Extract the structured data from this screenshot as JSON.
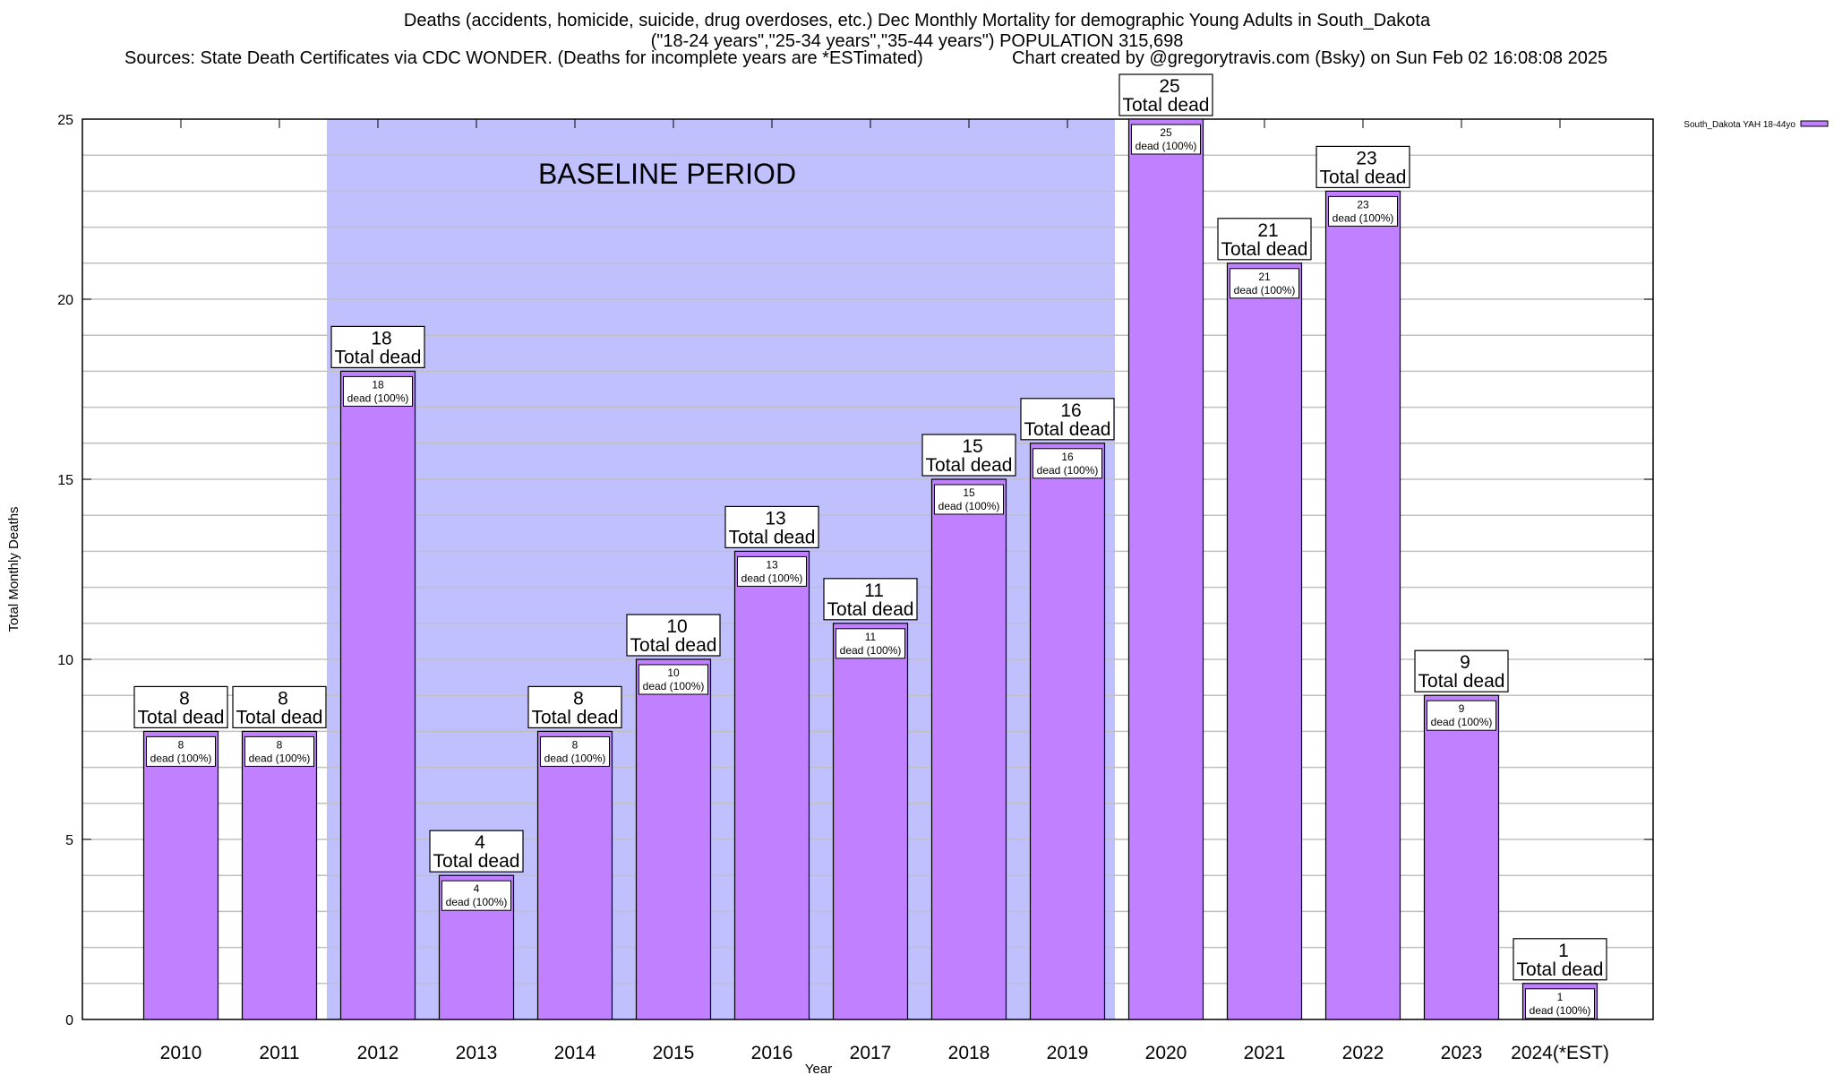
{
  "chart_data": {
    "type": "bar",
    "title_lines": [
      "Deaths (accidents, homicide, suicide, drug overdoses, etc.) Dec Monthly Mortality for demographic Young Adults in South_Dakota",
      "(\"18-24 years\",\"25-34 years\",\"35-44 years\") POPULATION 315,698"
    ],
    "sources": "Sources: State Death Certificates via CDC WONDER. (Deaths for incomplete years are *ESTimated)",
    "credit": "Chart created by @gregorytravis.com (Bsky) on Sun Feb 02 16:08:08 2025",
    "xlabel": "Year",
    "ylabel": "Total Monthly Deaths",
    "ylim": [
      0,
      25
    ],
    "yticks": [
      0,
      5,
      10,
      15,
      20,
      25
    ],
    "grid": true,
    "categories": [
      "2010",
      "2011",
      "2012",
      "2013",
      "2014",
      "2015",
      "2016",
      "2017",
      "2018",
      "2019",
      "2020",
      "2021",
      "2022",
      "2023",
      "2024(*EST)"
    ],
    "series": [
      {
        "name": "South_Dakota YAH 18-44yo",
        "values": [
          8,
          8,
          18,
          4,
          8,
          10,
          13,
          11,
          15,
          16,
          25,
          21,
          23,
          9,
          1
        ]
      }
    ],
    "total_label": "Total dead",
    "inner_label": "dead (100%)",
    "baseline": {
      "label": "BASELINE PERIOD",
      "from": "2012",
      "to": "2019"
    },
    "legend_position": "top-right",
    "colors": {
      "bar": "#c080ff",
      "baseline": "#c0c0ff",
      "grid": "#c0c0c0"
    }
  }
}
